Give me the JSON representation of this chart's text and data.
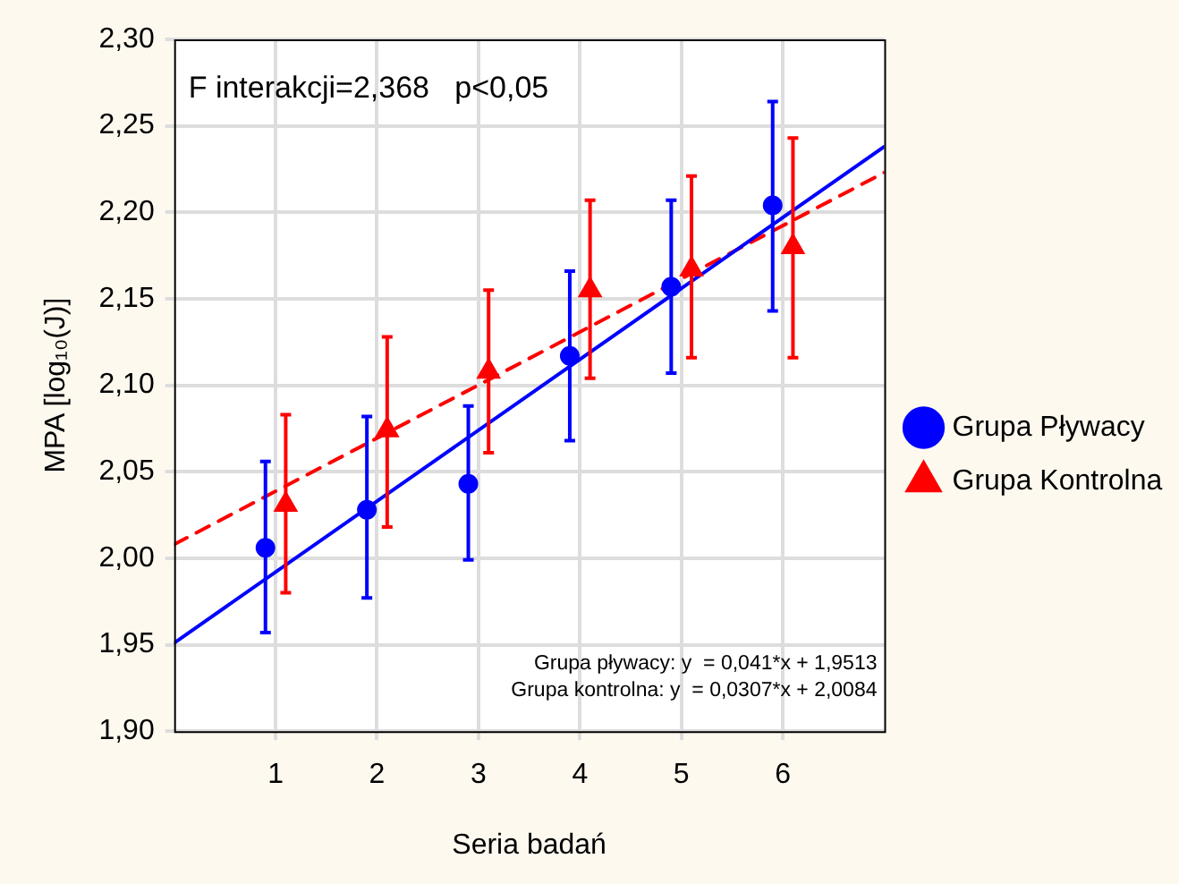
{
  "chart_data": {
    "type": "scatter",
    "xlabel": "Seria badań",
    "ylabel": "MPA [log₁₀(J)]",
    "annotations": [
      "F interakcji=2,368   p<0,05",
      "Grupa pływacy: y  = 0,041*x + 1,9513",
      "Grupa kontrolna: y  = 0,0307*x + 2,0084"
    ],
    "xlim": [
      0,
      7
    ],
    "xticks": [
      1,
      2,
      3,
      4,
      5,
      6
    ],
    "ylim": [
      1.9,
      2.3
    ],
    "yticks": [
      {
        "value": 1.9,
        "label": "1,90"
      },
      {
        "value": 1.95,
        "label": "1,95"
      },
      {
        "value": 2.0,
        "label": "2,00"
      },
      {
        "value": 2.05,
        "label": "2,05"
      },
      {
        "value": 2.1,
        "label": "2,10"
      },
      {
        "value": 2.15,
        "label": "2,15"
      },
      {
        "value": 2.2,
        "label": "2,20"
      },
      {
        "value": 2.25,
        "label": "2,25"
      },
      {
        "value": 2.3,
        "label": "2,30"
      }
    ],
    "grid": true,
    "legend": "right",
    "series": [
      {
        "name": "Grupa Pływacy",
        "color": "#0000ff",
        "marker": "circle",
        "x": [
          0.9,
          1.9,
          2.9,
          3.9,
          4.9,
          5.9
        ],
        "values": [
          2.006,
          2.028,
          2.043,
          2.117,
          2.157,
          2.204
        ],
        "errors": [
          [
            1.957,
            2.056
          ],
          [
            1.977,
            2.082
          ],
          [
            1.999,
            2.088
          ],
          [
            2.068,
            2.166
          ],
          [
            2.107,
            2.207
          ],
          [
            2.143,
            2.264
          ]
        ]
      },
      {
        "name": "Grupa Kontrolna",
        "color": "#ff0000",
        "marker": "triangle",
        "x": [
          1.1,
          2.1,
          3.1,
          4.1,
          5.1,
          6.1
        ],
        "values": [
          2.031,
          2.074,
          2.108,
          2.155,
          2.167,
          2.18
        ],
        "errors": [
          [
            1.98,
            2.083
          ],
          [
            2.018,
            2.128
          ],
          [
            2.061,
            2.155
          ],
          [
            2.104,
            2.207
          ],
          [
            2.116,
            2.221
          ],
          [
            2.116,
            2.243
          ]
        ]
      },
      {
        "type": "line",
        "color": "#0000ff",
        "line_style": "solid",
        "marker": "none",
        "x": [
          0,
          7
        ],
        "values": [
          1.951,
          2.238
        ]
      },
      {
        "type": "line",
        "color": "#ff0000",
        "line_style": "dashed",
        "marker": "none",
        "x": [
          0,
          7
        ],
        "values": [
          2.008,
          2.223
        ]
      }
    ]
  }
}
